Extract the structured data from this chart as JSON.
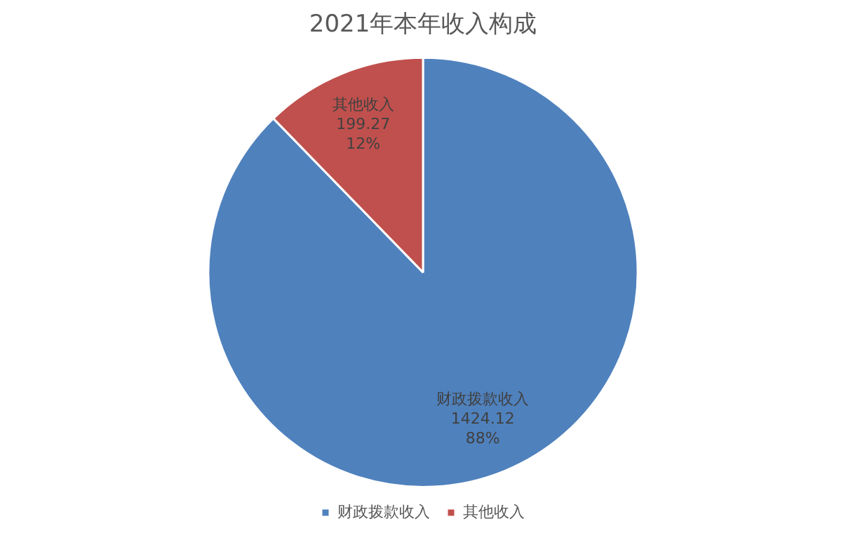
{
  "chart_data": {
    "type": "pie",
    "title": "2021年本年收入构成",
    "categories": [
      "财政拨款收入",
      "其他收入"
    ],
    "values": [
      1424.12,
      199.27
    ],
    "colors": [
      "#4f81bd",
      "#c0504d"
    ],
    "value_labels": [
      "财政拨款收入\n1424.12\n88%",
      "其他收入\n199.27\n12%"
    ],
    "legend": "bottom"
  }
}
